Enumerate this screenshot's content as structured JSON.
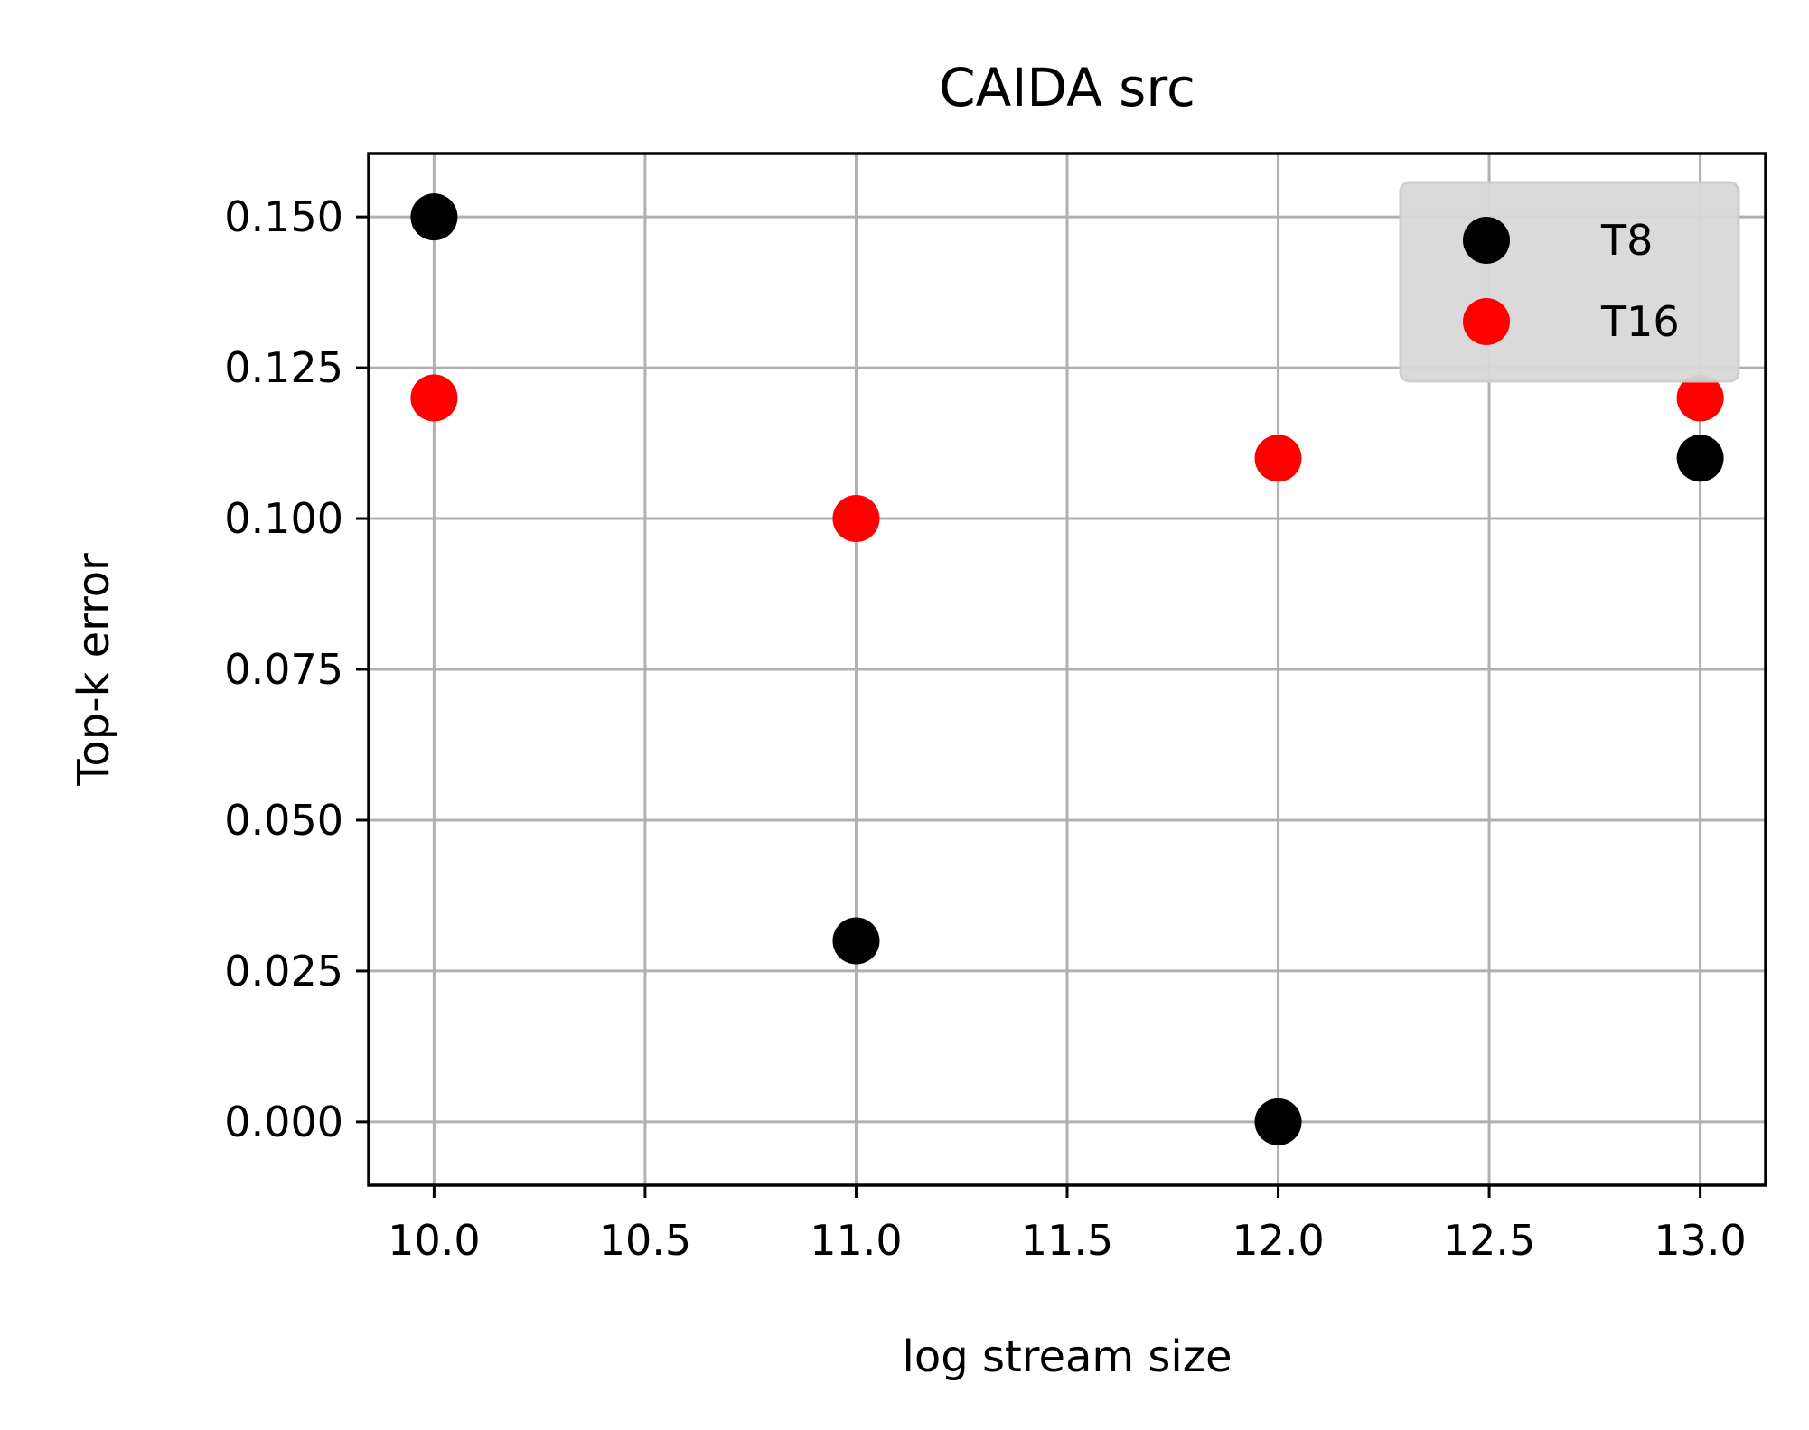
{
  "chart_data": {
    "type": "scatter",
    "title": "CAIDA src",
    "xlabel": "log stream size",
    "ylabel": "Top-k error",
    "xlim": [
      9.845,
      13.155
    ],
    "ylim": [
      -0.0105,
      0.1605
    ],
    "xticks": [
      10.0,
      10.5,
      11.0,
      11.5,
      12.0,
      12.5,
      13.0
    ],
    "xtick_labels": [
      "10.0",
      "10.5",
      "11.0",
      "11.5",
      "12.0",
      "12.5",
      "13.0"
    ],
    "yticks": [
      0.0,
      0.025,
      0.05,
      0.075,
      0.1,
      0.125,
      0.15
    ],
    "ytick_labels": [
      "0.000",
      "0.025",
      "0.050",
      "0.075",
      "0.100",
      "0.125",
      "0.150"
    ],
    "grid": true,
    "legend": "top-right",
    "series": [
      {
        "name": "T8",
        "color": "#000000",
        "x": [
          10,
          11,
          12,
          13
        ],
        "y": [
          0.15,
          0.03,
          0.0,
          0.11
        ]
      },
      {
        "name": "T16",
        "color": "#ff0000",
        "x": [
          10,
          11,
          12,
          13
        ],
        "y": [
          0.12,
          0.1,
          0.11,
          0.12
        ]
      }
    ]
  }
}
